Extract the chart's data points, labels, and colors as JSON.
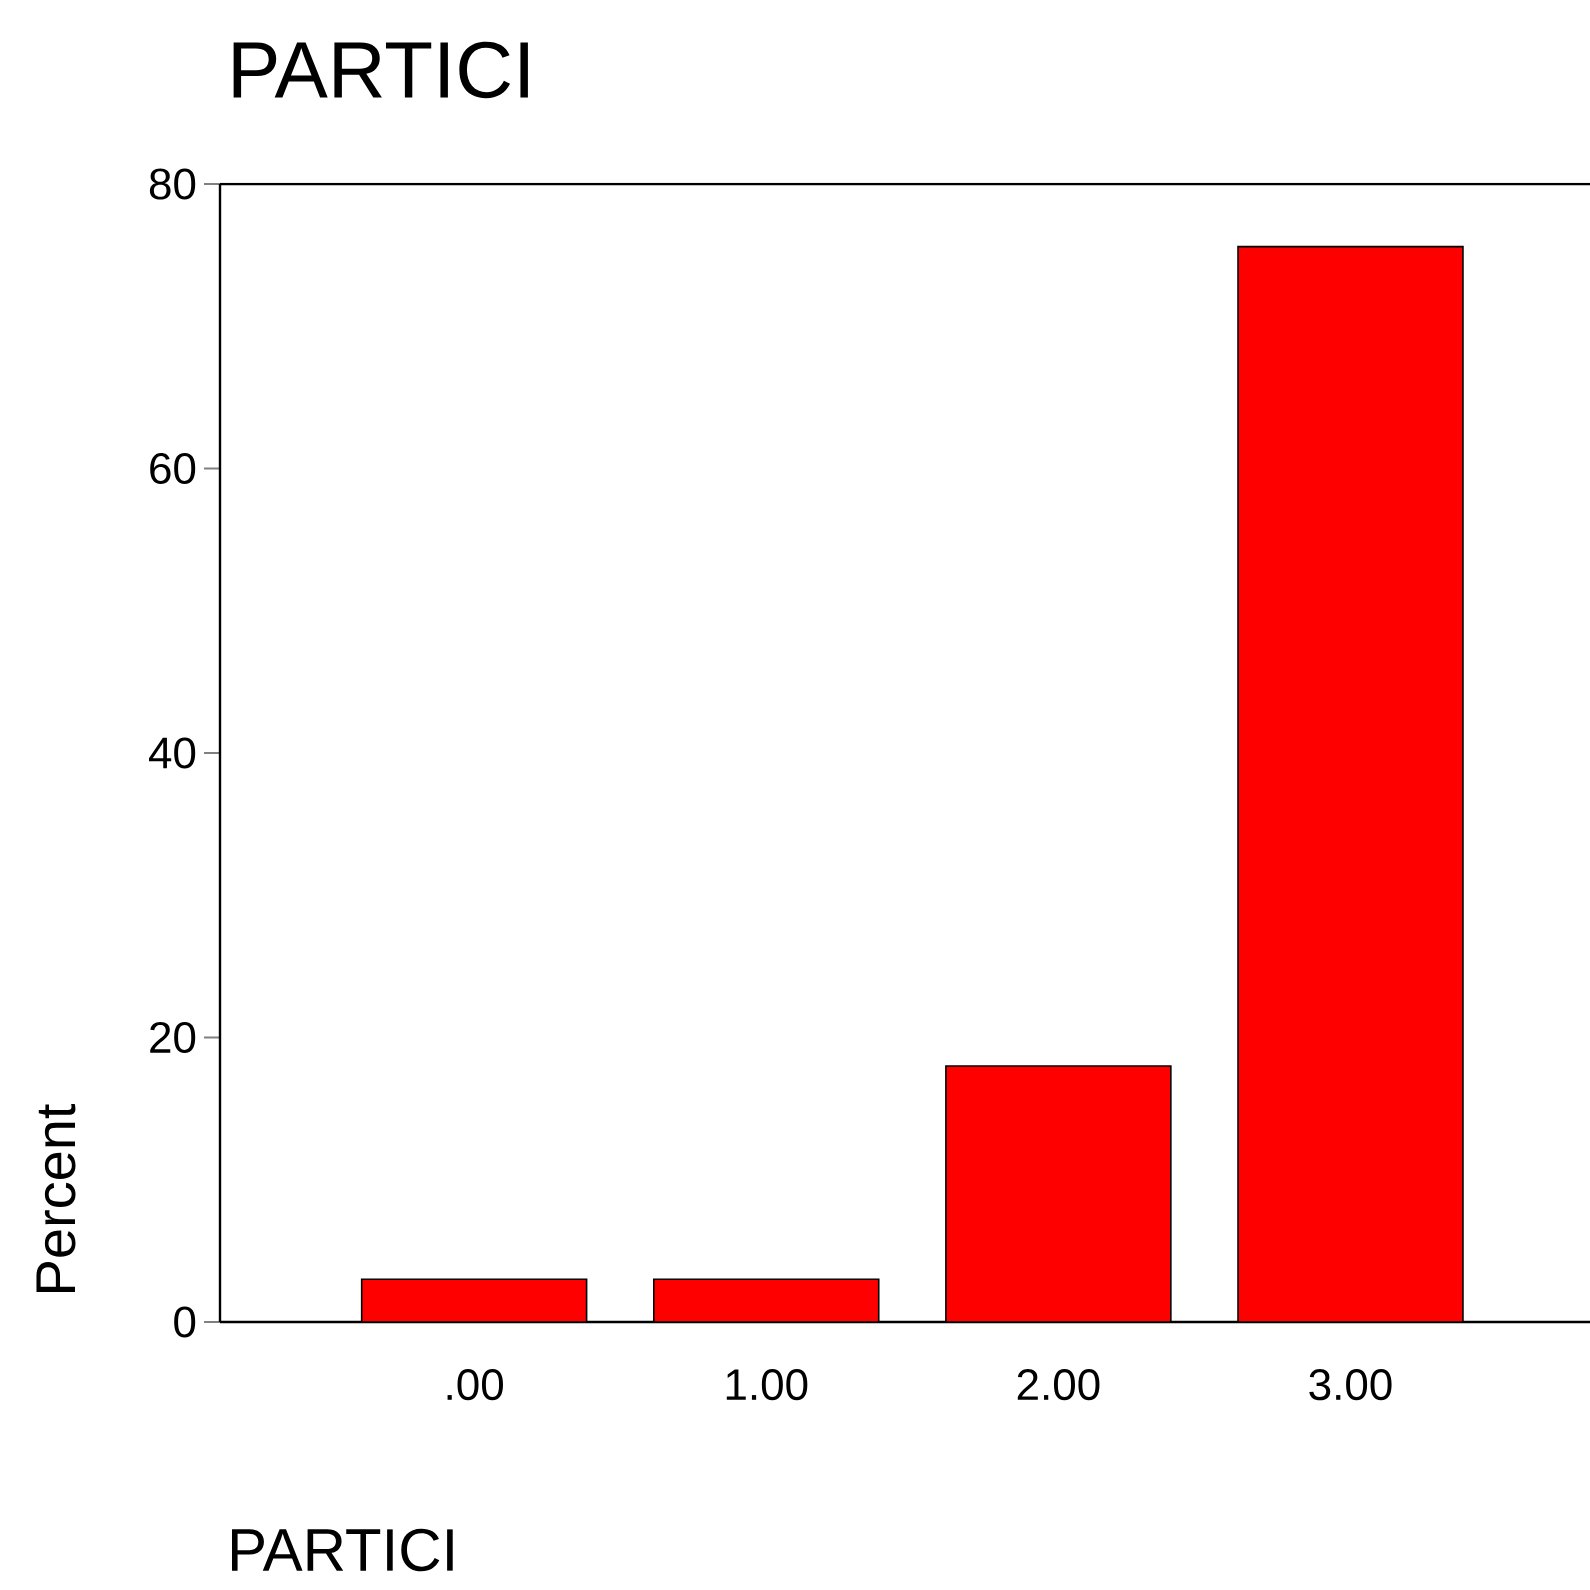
{
  "chart_data": {
    "type": "bar",
    "title": "PARTICI",
    "xlabel": "PARTICI",
    "ylabel": "Percent",
    "categories": [
      ".00",
      "1.00",
      "2.00",
      "3.00"
    ],
    "values": [
      3,
      3,
      18,
      75.6
    ],
    "color": "#ff0000",
    "ylim": [
      0,
      80
    ],
    "yticks": [
      0,
      20,
      40,
      60,
      80
    ]
  }
}
